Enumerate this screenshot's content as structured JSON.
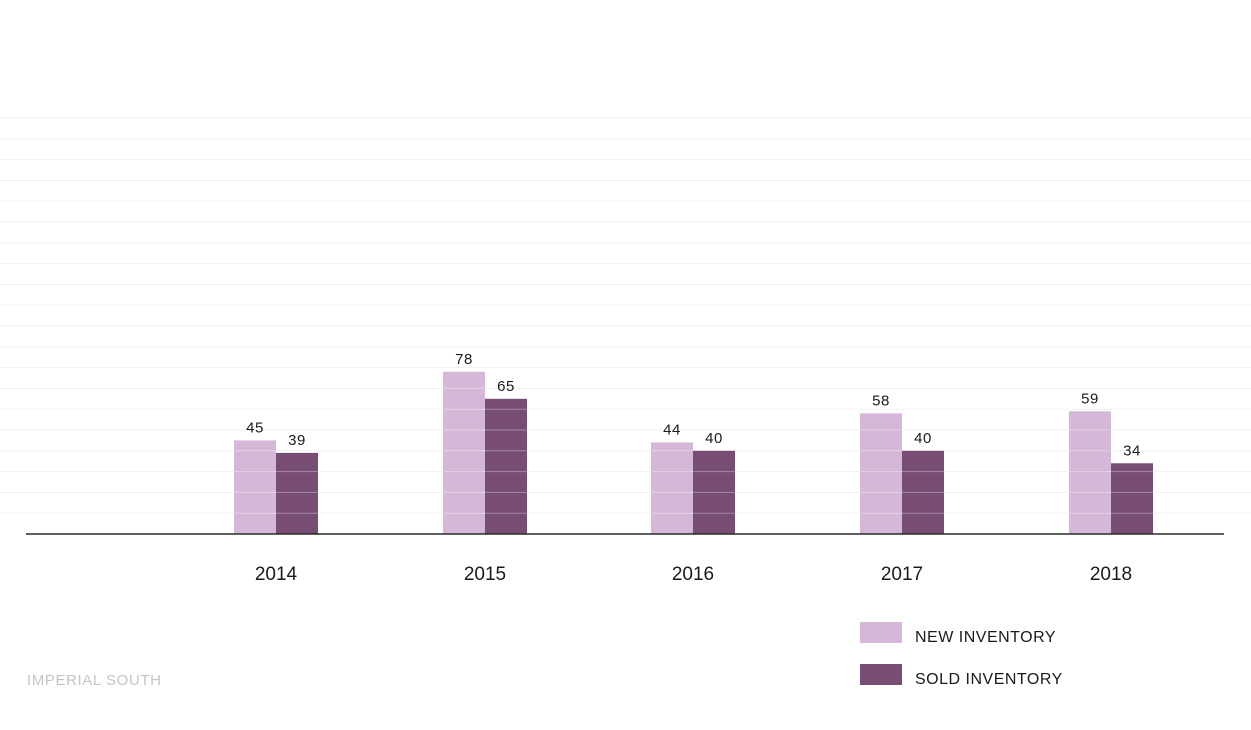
{
  "chart_data": {
    "type": "bar",
    "title": "",
    "xlabel": "",
    "ylabel": "",
    "categories": [
      "2014",
      "2015",
      "2016",
      "2017",
      "2018"
    ],
    "series": [
      {
        "name": "NEW INVENTORY",
        "values": [
          45,
          78,
          44,
          58,
          59
        ],
        "color": "#d5b8d8"
      },
      {
        "name": "SOLD INVENTORY",
        "values": [
          39,
          65,
          40,
          40,
          34
        ],
        "color": "#774d74"
      }
    ],
    "ylim": [
      0,
      200
    ],
    "grid": true,
    "legend": "bottom-right"
  },
  "watermark": "IMPERIAL SOUTH"
}
